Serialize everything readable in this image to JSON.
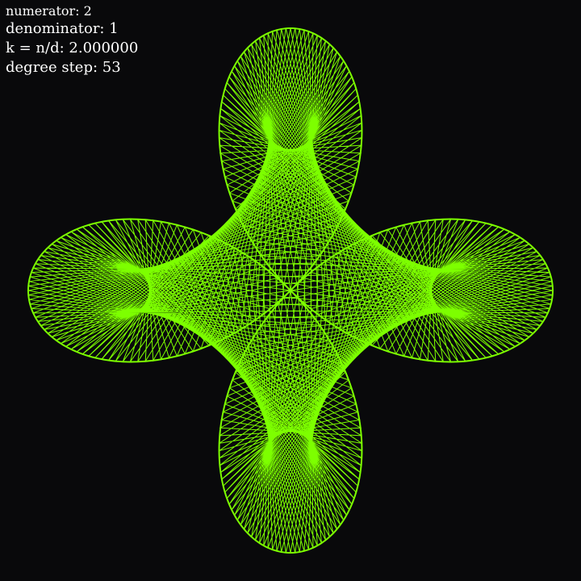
{
  "hud": {
    "numerator_label": "numerator: 2",
    "denominator_label": "denominator: 1",
    "k_label": "k = n/d: 2.000000",
    "degree_step_label": "degree step: 53"
  },
  "params": {
    "numerator": 2,
    "denominator": 1,
    "k": 2.0,
    "degree_step": 53
  },
  "colors": {
    "background": "#09090b",
    "stroke": "#7dff00",
    "text": "#ffffff"
  }
}
